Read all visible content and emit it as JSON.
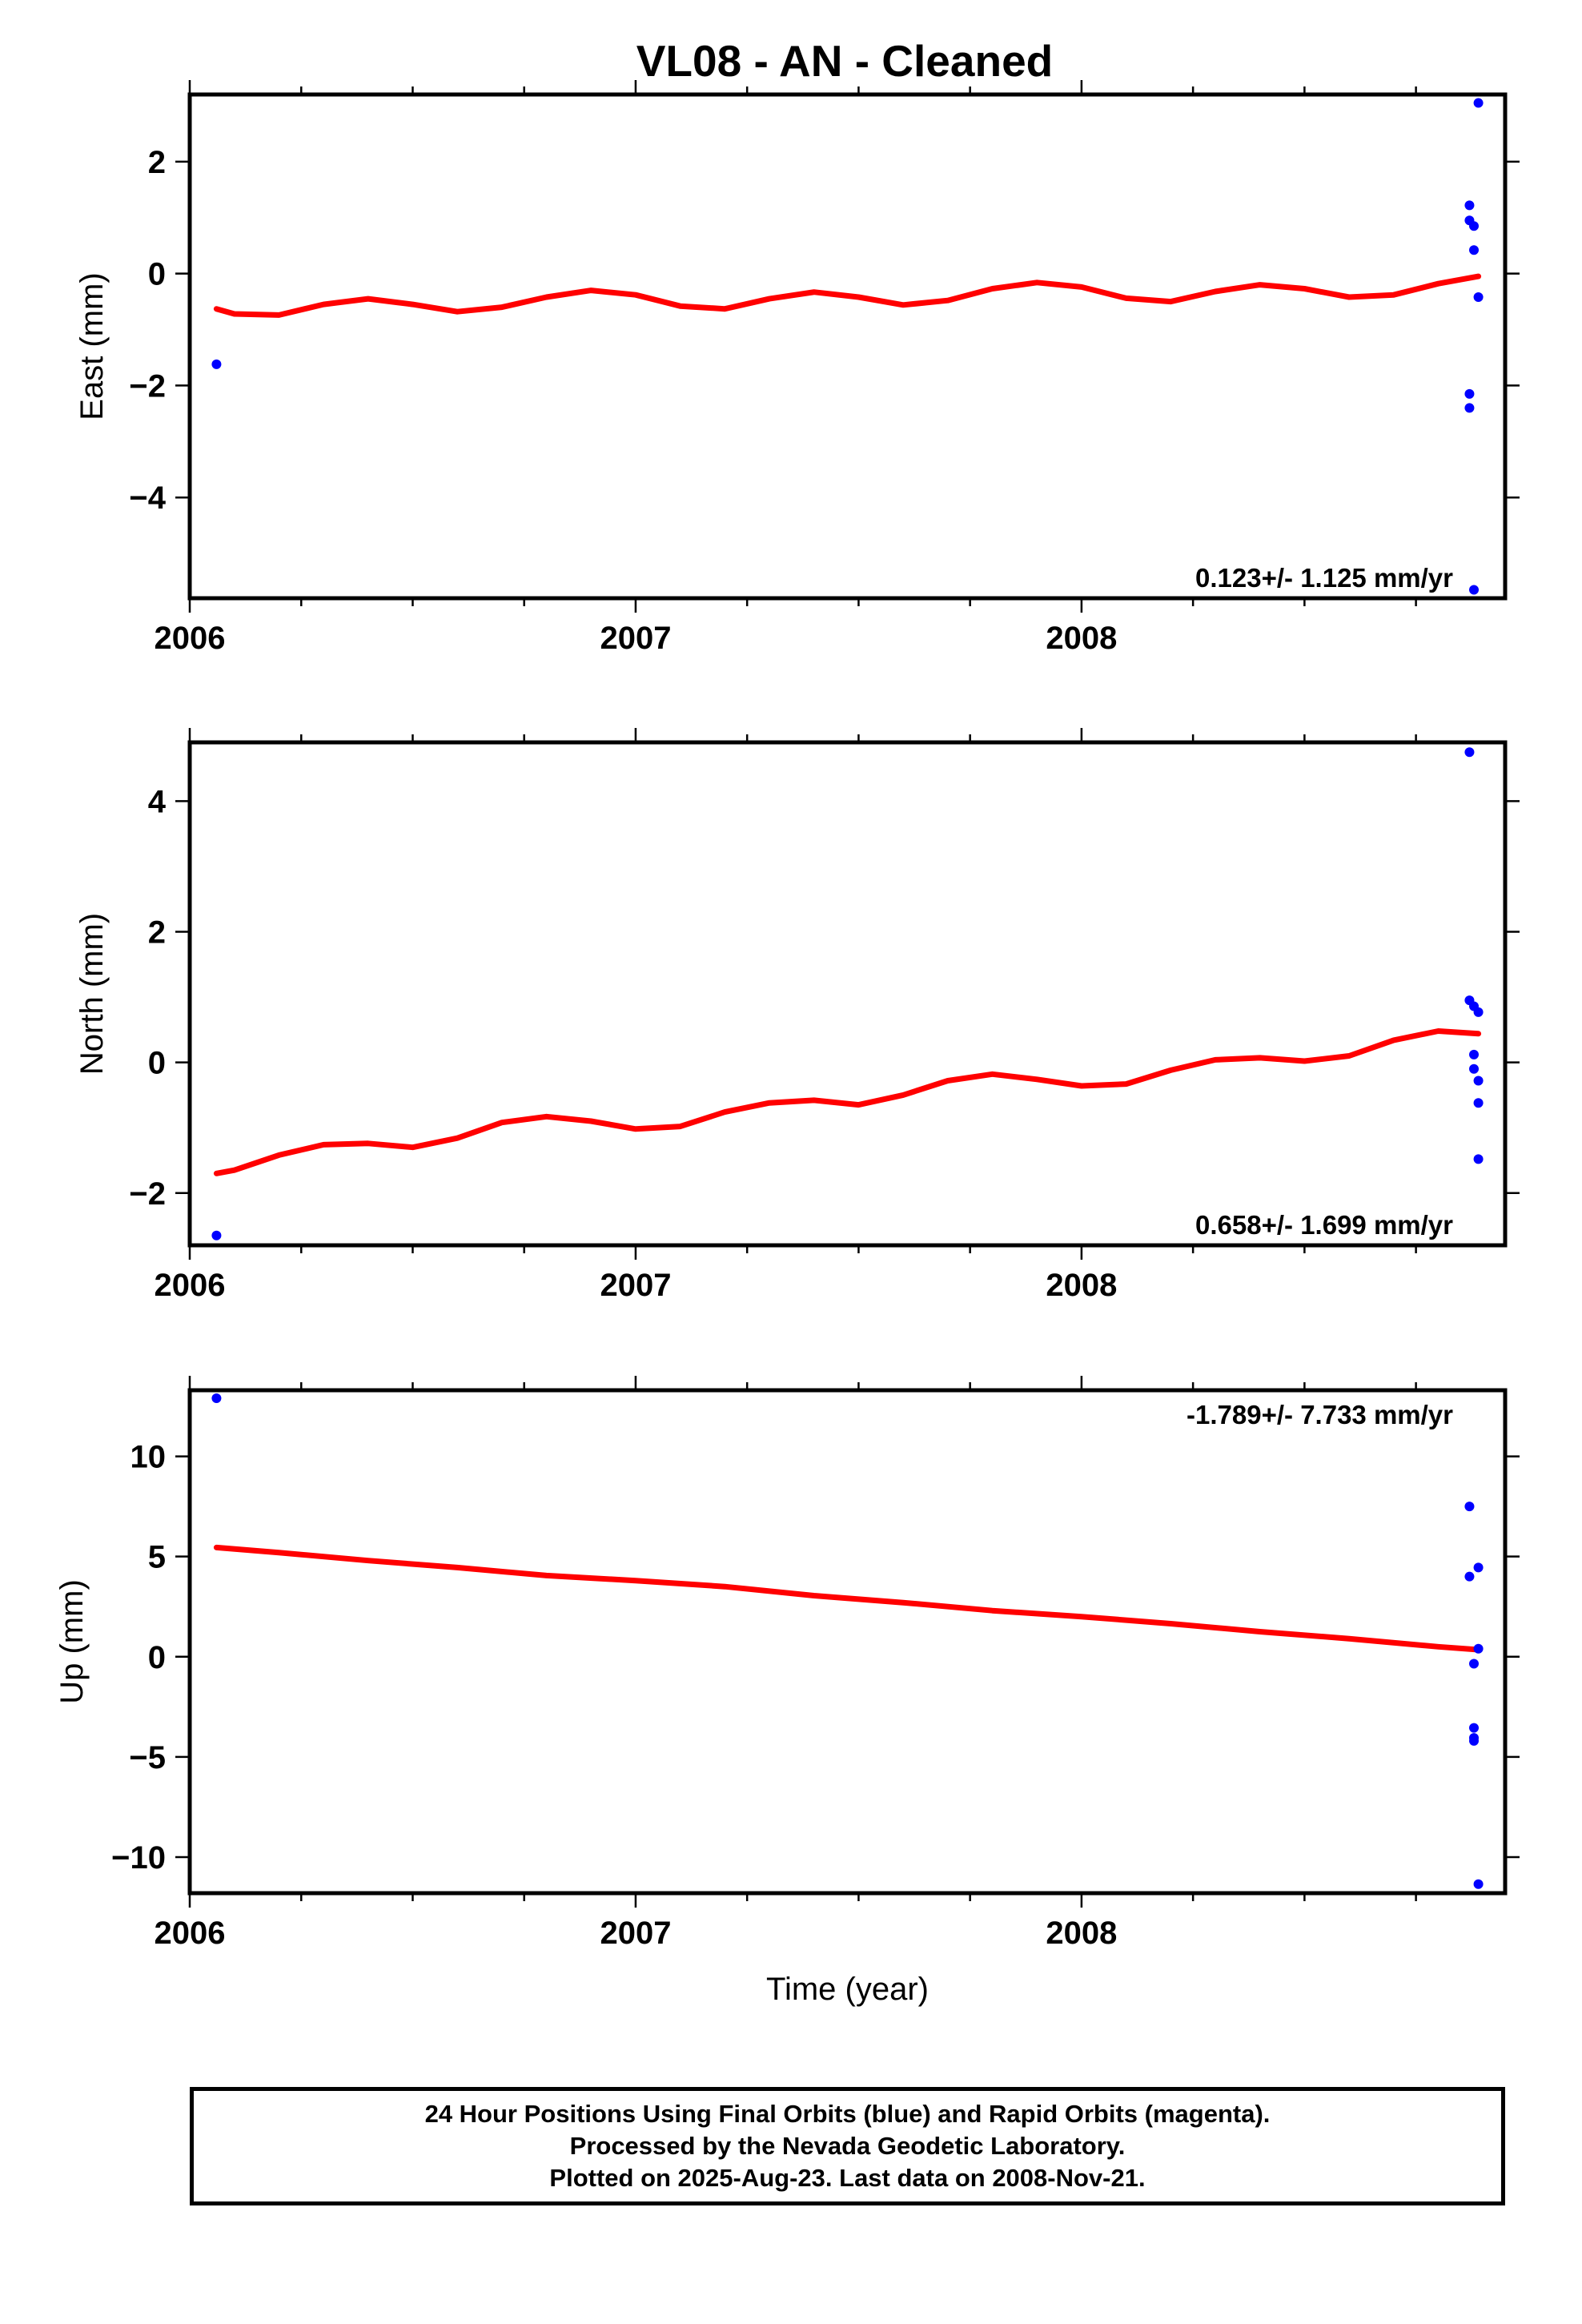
{
  "title": "VL08  - AN - Cleaned",
  "footer": {
    "line1": "24 Hour Positions Using Final Orbits (blue) and Rapid Orbits (magenta).",
    "line2": "Processed by the Nevada Geodetic Laboratory.",
    "line3": "Plotted on 2025-Aug-23. Last data on 2008-Nov-21."
  },
  "colors": {
    "data": "#0000ff",
    "model": "#ff0000",
    "axis": "#000000"
  },
  "chart_data": [
    {
      "type": "scatter",
      "ylabel": "East (mm)",
      "xlabel": "",
      "xlim": [
        2006.0,
        2008.95
      ],
      "ylim": [
        -5.8,
        3.2
      ],
      "xticks": [
        2006,
        2007,
        2008
      ],
      "xtick_labels": [
        "2006",
        "2007",
        "2008"
      ],
      "yticks": [
        -4,
        -2,
        0,
        2
      ],
      "ytick_labels": [
        "−4",
        "−2",
        "0",
        "2"
      ],
      "rate_label": "0.123+/- 1.125 mm/yr",
      "rate_position": "bottom-right",
      "grid": false,
      "points": {
        "x": [
          2006.06,
          2008.87,
          2008.87,
          2008.87,
          2008.87,
          2008.88,
          2008.89,
          2008.88,
          2008.88,
          2008.89
        ],
        "y": [
          -1.62,
          1.22,
          0.95,
          -2.15,
          -2.4,
          -5.65,
          3.05,
          0.85,
          0.42,
          -0.42
        ]
      },
      "fit": {
        "x": [
          2006.06,
          2006.1,
          2006.2,
          2006.3,
          2006.4,
          2006.5,
          2006.6,
          2006.7,
          2006.8,
          2006.9,
          2007.0,
          2007.1,
          2007.2,
          2007.3,
          2007.4,
          2007.5,
          2007.6,
          2007.7,
          2007.8,
          2007.9,
          2008.0,
          2008.1,
          2008.2,
          2008.3,
          2008.4,
          2008.5,
          2008.6,
          2008.7,
          2008.8,
          2008.89
        ],
        "y": [
          -0.63,
          -0.72,
          -0.74,
          -0.55,
          -0.45,
          -0.55,
          -0.68,
          -0.6,
          -0.42,
          -0.3,
          -0.38,
          -0.58,
          -0.63,
          -0.45,
          -0.33,
          -0.42,
          -0.56,
          -0.48,
          -0.27,
          -0.16,
          -0.24,
          -0.44,
          -0.5,
          -0.32,
          -0.2,
          -0.27,
          -0.42,
          -0.38,
          -0.18,
          -0.05
        ]
      }
    },
    {
      "type": "scatter",
      "ylabel": "North (mm)",
      "xlabel": "",
      "xlim": [
        2006.0,
        2008.95
      ],
      "ylim": [
        -2.8,
        4.9
      ],
      "xticks": [
        2006,
        2007,
        2008
      ],
      "xtick_labels": [
        "2006",
        "2007",
        "2008"
      ],
      "yticks": [
        -2,
        0,
        2,
        4
      ],
      "ytick_labels": [
        "−2",
        "0",
        "2",
        "4"
      ],
      "rate_label": "0.658+/- 1.699 mm/yr",
      "rate_position": "bottom-right",
      "grid": false,
      "points": {
        "x": [
          2006.06,
          2008.87,
          2008.87,
          2008.88,
          2008.88,
          2008.89,
          2008.89,
          2008.88,
          2008.89,
          2008.89
        ],
        "y": [
          -2.65,
          4.75,
          0.95,
          0.12,
          -0.1,
          -0.28,
          -0.62,
          0.86,
          0.77,
          -1.48
        ]
      },
      "fit": {
        "x": [
          2006.06,
          2006.1,
          2006.2,
          2006.3,
          2006.4,
          2006.5,
          2006.6,
          2006.7,
          2006.8,
          2006.9,
          2007.0,
          2007.1,
          2007.2,
          2007.3,
          2007.4,
          2007.5,
          2007.6,
          2007.7,
          2007.8,
          2007.9,
          2008.0,
          2008.1,
          2008.2,
          2008.3,
          2008.4,
          2008.5,
          2008.6,
          2008.7,
          2008.8,
          2008.89
        ],
        "y": [
          -1.7,
          -1.65,
          -1.42,
          -1.26,
          -1.24,
          -1.3,
          -1.16,
          -0.92,
          -0.83,
          -0.9,
          -1.02,
          -0.98,
          -0.76,
          -0.62,
          -0.58,
          -0.65,
          -0.5,
          -0.28,
          -0.18,
          -0.26,
          -0.36,
          -0.33,
          -0.12,
          0.04,
          0.07,
          0.02,
          0.1,
          0.34,
          0.48,
          0.44
        ]
      }
    },
    {
      "type": "scatter",
      "ylabel": "Up (mm)",
      "xlabel": "Time (year)",
      "xlim": [
        2006.0,
        2008.95
      ],
      "ylim": [
        -11.8,
        13.3
      ],
      "xticks": [
        2006,
        2007,
        2008
      ],
      "xtick_labels": [
        "2006",
        "2007",
        "2008"
      ],
      "yticks": [
        -10,
        -5,
        0,
        5,
        10
      ],
      "ytick_labels": [
        "−10",
        "−5",
        "0",
        "5",
        "10"
      ],
      "rate_label": "-1.789+/- 7.733 mm/yr",
      "rate_position": "top-right",
      "grid": false,
      "points": {
        "x": [
          2006.06,
          2008.87,
          2008.87,
          2008.88,
          2008.88,
          2008.88,
          2008.89,
          2008.89,
          2008.89,
          2008.88
        ],
        "y": [
          12.9,
          7.5,
          4.0,
          -0.35,
          -3.55,
          -4.2,
          4.45,
          0.4,
          -11.35,
          -4.05
        ]
      },
      "fit": {
        "x": [
          2006.06,
          2006.2,
          2006.4,
          2006.6,
          2006.8,
          2007.0,
          2007.2,
          2007.4,
          2007.6,
          2007.8,
          2008.0,
          2008.2,
          2008.4,
          2008.6,
          2008.8,
          2008.89
        ],
        "y": [
          5.45,
          5.2,
          4.8,
          4.45,
          4.05,
          3.8,
          3.5,
          3.05,
          2.7,
          2.3,
          2.0,
          1.65,
          1.25,
          0.9,
          0.5,
          0.35
        ]
      }
    }
  ]
}
